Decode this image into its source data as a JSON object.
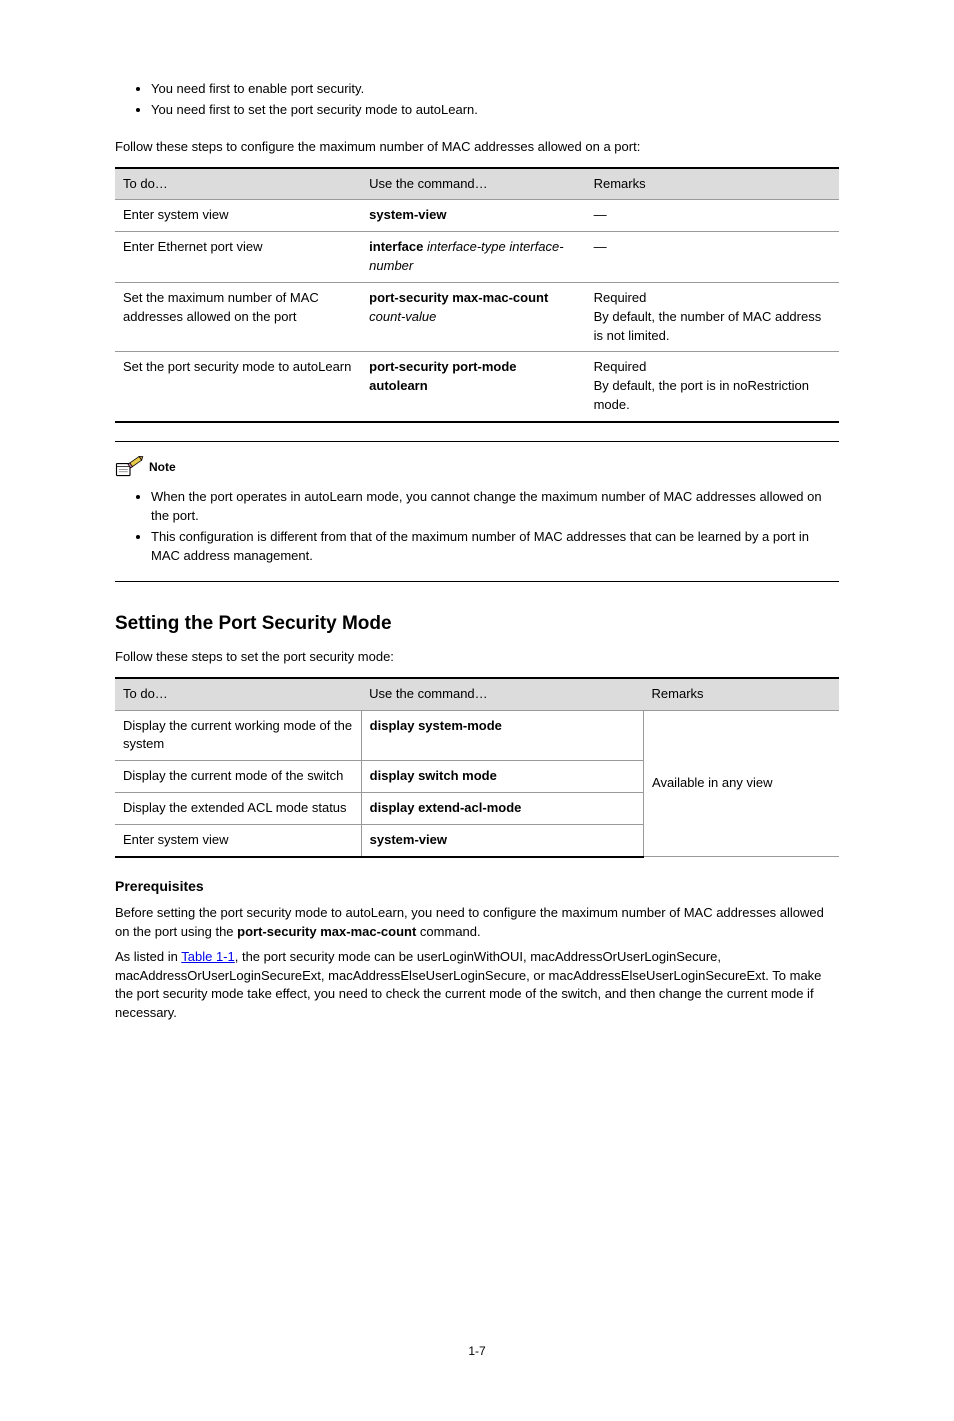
{
  "intro_bullets": [
    "You need first to enable port security.",
    "You need first to set the port security mode to autoLearn."
  ],
  "table1": {
    "title": "Follow these steps to configure the maximum number of MAC addresses allowed on a port:",
    "headers": [
      "To do…",
      "Use the command…",
      "Remarks"
    ],
    "rows": [
      {
        "c0": "Enter system view",
        "c1_bold": "system-view",
        "c1_rest": "",
        "c2": "—"
      },
      {
        "c0": "Enter Ethernet port view",
        "c1_bold": "interface",
        "c1_rest": " interface-type interface-number",
        "c2": "—"
      },
      {
        "c0": "Set the maximum number of MAC addresses allowed on the port",
        "c1_bold": "port-security max-mac-count",
        "c1_rest": " count-value",
        "c2": "Required\nBy default, the number of MAC address is not limited."
      },
      {
        "c0": "Set the port security mode to autoLearn",
        "c1_bold": "port-security port-mode autolearn",
        "c1_rest": "",
        "c2": "Required\nBy default, the port is in noRestriction mode."
      }
    ]
  },
  "note": {
    "label": "Note",
    "items": [
      "When the port operates in autoLearn mode, you cannot change the maximum number of MAC addresses allowed on the port.",
      "This configuration is different from that of the maximum number of MAC addresses that can be learned by a port in MAC address management."
    ]
  },
  "table2": {
    "title": "Follow these steps to set the port security mode:",
    "heading": "Setting the Port Security Mode",
    "headers": [
      "To do…",
      "Use the command…",
      "Remarks"
    ],
    "remarks_merged": "Available in any view",
    "rows": [
      {
        "c0": "Display the current working mode of the system",
        "c1_bold": "display system-mode",
        "c1_rest": ""
      },
      {
        "c0": "Display the current mode of the switch",
        "c1_bold": "display switch mode",
        "c1_rest": ""
      },
      {
        "c0": "Display the extended ACL mode status",
        "c1_bold": "display extend-acl-mode",
        "c1_rest": ""
      },
      {
        "c0": "Enter system view",
        "c1_bold": "system-view",
        "c1_rest": ""
      }
    ]
  },
  "prereq": {
    "heading": "Prerequisites",
    "p1_prefix": "Before setting the port security mode to autoLearn, you need to configure the maximum number of MAC addresses allowed on the port using the ",
    "p1_bold": "port-security max-mac-count",
    "p1_suffix": " command.",
    "p2_tmpl": "As listed in {link}, the port security mode can be userLoginWithOUI, macAddressOrUserLoginSecure, macAddressOrUserLoginSecureExt, macAddressElseUserLoginSecure, or macAddressElseUserLoginSecureExt. To make the port security mode take effect, you need to check the current mode of the switch, and then change the current mode if necessary.",
    "link_text": "Table 1-1"
  },
  "page_number": "1-7"
}
